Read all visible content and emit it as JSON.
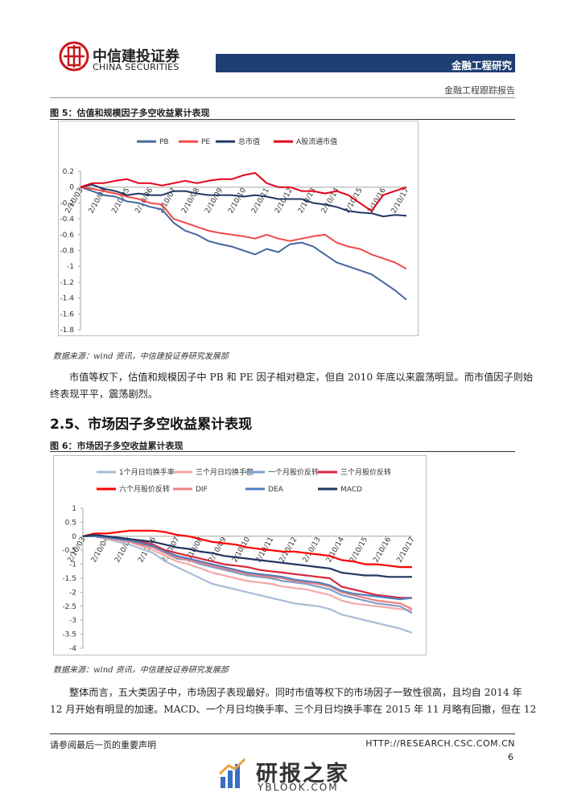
{
  "header": {
    "company_cn": "中信建投证券",
    "company_en": "CHINA SECURITIES",
    "department": "金融工程研究",
    "report_type": "金融工程跟踪报告"
  },
  "chart_data": [
    {
      "type": "line",
      "title": "图 5：估值和规模因子多空收益累计表现",
      "source": "数据来源：wind 资讯，中信建投证券研究发展部",
      "categories": [
        "2/10/03",
        null,
        "2/10/04",
        null,
        "2/10/05",
        null,
        "2/10/06",
        null,
        "2/10/07",
        null,
        "2/10/08",
        null,
        "2/10/09",
        null,
        "2/10/10",
        null,
        "2/10/11",
        null,
        "2/10/12",
        null,
        "2/10/13",
        null,
        "2/10/14",
        null,
        "2/10/15",
        null,
        "2/10/16",
        null,
        "2/10/17"
      ],
      "ylim": [
        -1.8,
        0.2
      ],
      "yticks": [
        0.2,
        0,
        -0.2,
        -0.4,
        -0.6,
        -0.8,
        -1,
        -1.2,
        -1.4,
        -1.6,
        -1.8
      ],
      "grid": false,
      "series": [
        {
          "name": "PB",
          "color": "#44679c",
          "values": [
            0,
            -0.05,
            -0.1,
            -0.12,
            -0.18,
            -0.2,
            -0.25,
            -0.28,
            -0.45,
            -0.55,
            -0.6,
            -0.68,
            -0.72,
            -0.75,
            -0.8,
            -0.85,
            -0.78,
            -0.82,
            -0.72,
            -0.7,
            -0.75,
            -0.85,
            -0.95,
            -1.0,
            -1.05,
            -1.1,
            -1.2,
            -1.3,
            -1.42
          ]
        },
        {
          "name": "PE",
          "color": "#f04848",
          "values": [
            0,
            -0.02,
            -0.05,
            -0.08,
            -0.12,
            -0.15,
            -0.2,
            -0.22,
            -0.4,
            -0.45,
            -0.5,
            -0.55,
            -0.58,
            -0.6,
            -0.62,
            -0.65,
            -0.6,
            -0.65,
            -0.68,
            -0.65,
            -0.62,
            -0.6,
            -0.7,
            -0.75,
            -0.78,
            -0.85,
            -0.9,
            -0.95,
            -1.03
          ]
        },
        {
          "name": "总市值",
          "color": "#1f3864",
          "values": [
            0,
            0.03,
            -0.02,
            -0.05,
            -0.1,
            -0.08,
            -0.1,
            -0.1,
            -0.05,
            -0.05,
            -0.08,
            -0.1,
            -0.1,
            -0.1,
            -0.12,
            -0.1,
            -0.12,
            -0.15,
            -0.15,
            -0.15,
            -0.2,
            -0.22,
            -0.25,
            -0.3,
            -0.32,
            -0.33,
            -0.37,
            -0.35,
            -0.36
          ]
        },
        {
          "name": "A股流通市值",
          "color": "#e3001b",
          "values": [
            0,
            0.05,
            0.05,
            0.08,
            0.1,
            0.05,
            0.05,
            0.02,
            0.05,
            0.08,
            0.05,
            0.08,
            0.1,
            0.1,
            0.15,
            0.18,
            0.05,
            0.0,
            0.0,
            -0.05,
            -0.05,
            -0.08,
            -0.05,
            -0.1,
            -0.2,
            -0.3,
            -0.1,
            -0.05,
            0.0
          ]
        }
      ]
    },
    {
      "type": "line",
      "title": "图 6：市场因子多空收益累计表现",
      "source": "数据来源：wind 资讯，中信建投证券研究发展部",
      "categories": [
        "2/10/03",
        null,
        "2/10/04",
        null,
        "2/10/05",
        null,
        "2/10/06",
        null,
        "2/10/07",
        null,
        "2/10/08",
        null,
        "2/10/09",
        null,
        "2/10/10",
        null,
        "2/10/11",
        null,
        "2/10/12",
        null,
        "2/10/13",
        null,
        "2/10/14",
        null,
        "2/10/15",
        null,
        "2/10/16",
        null,
        "2/10/17"
      ],
      "ylim": [
        -4,
        1
      ],
      "yticks": [
        1,
        0.5,
        0,
        -0.5,
        -1,
        -1.5,
        -2,
        -2.5,
        -3,
        -3.5,
        -4
      ],
      "grid": false,
      "series": [
        {
          "name": "1个月日均换手率",
          "color": "#a9bcd6",
          "values": [
            0,
            0,
            -0.1,
            -0.2,
            -0.3,
            -0.45,
            -0.6,
            -0.9,
            -1.1,
            -1.3,
            -1.5,
            -1.7,
            -1.8,
            -1.9,
            -2.0,
            -2.1,
            -2.2,
            -2.3,
            -2.4,
            -2.45,
            -2.5,
            -2.6,
            -2.8,
            -2.9,
            -3.0,
            -3.1,
            -3.2,
            -3.3,
            -3.45
          ]
        },
        {
          "name": "三个月日均换手额",
          "color": "#f4a9a8",
          "values": [
            0,
            0,
            -0.1,
            -0.15,
            -0.2,
            -0.35,
            -0.5,
            -0.7,
            -0.9,
            -1.0,
            -1.15,
            -1.3,
            -1.4,
            -1.5,
            -1.6,
            -1.65,
            -1.7,
            -1.8,
            -1.85,
            -1.9,
            -2.0,
            -2.1,
            -2.3,
            -2.4,
            -2.45,
            -2.5,
            -2.55,
            -2.6,
            -2.65
          ]
        },
        {
          "name": "一个月股价反转",
          "color": "#7f9fc9",
          "values": [
            0,
            0,
            -0.05,
            -0.1,
            -0.15,
            -0.3,
            -0.4,
            -0.6,
            -0.8,
            -0.85,
            -1.0,
            -1.1,
            -1.2,
            -1.3,
            -1.4,
            -1.45,
            -1.5,
            -1.6,
            -1.65,
            -1.7,
            -1.8,
            -1.9,
            -2.1,
            -2.2,
            -2.3,
            -2.4,
            -2.45,
            -2.5,
            -2.75
          ]
        },
        {
          "name": "三个月股价反转",
          "color": "#d7263d",
          "values": [
            0,
            0.05,
            0,
            -0.05,
            -0.1,
            -0.2,
            -0.3,
            -0.5,
            -0.6,
            -0.7,
            -0.8,
            -0.9,
            -1.0,
            -1.05,
            -1.1,
            -1.2,
            -1.25,
            -1.3,
            -1.35,
            -1.4,
            -1.45,
            -1.5,
            -1.8,
            -1.9,
            -2.0,
            -2.1,
            -2.15,
            -2.2,
            -2.2
          ]
        },
        {
          "name": "六个月股价反转",
          "color": "#ff0000",
          "values": [
            0,
            0.1,
            0.1,
            0.15,
            0.2,
            0.2,
            0.2,
            0.15,
            0.05,
            0,
            -0.1,
            -0.2,
            -0.25,
            -0.3,
            -0.4,
            -0.45,
            -0.5,
            -0.55,
            -0.55,
            -0.6,
            -0.65,
            -0.7,
            -0.85,
            -0.9,
            -1.0,
            -1.0,
            -1.05,
            -1.1,
            -1.1
          ]
        },
        {
          "name": "DIF",
          "color": "#f08080",
          "values": [
            0,
            0,
            -0.05,
            -0.1,
            -0.2,
            -0.3,
            -0.4,
            -0.6,
            -0.75,
            -0.85,
            -0.95,
            -1.05,
            -1.15,
            -1.25,
            -1.35,
            -1.4,
            -1.45,
            -1.5,
            -1.6,
            -1.65,
            -1.7,
            -1.8,
            -2.0,
            -2.1,
            -2.2,
            -2.3,
            -2.35,
            -2.4,
            -2.6
          ]
        },
        {
          "name": "DEA",
          "color": "#4f81bd",
          "values": [
            0,
            0,
            -0.05,
            -0.1,
            -0.15,
            -0.25,
            -0.35,
            -0.55,
            -0.7,
            -0.8,
            -0.9,
            -1.0,
            -1.1,
            -1.2,
            -1.3,
            -1.35,
            -1.4,
            -1.45,
            -1.55,
            -1.6,
            -1.65,
            -1.75,
            -1.95,
            -2.05,
            -2.1,
            -2.15,
            -2.2,
            -2.25,
            -2.2
          ]
        },
        {
          "name": "MACD",
          "color": "#1f3864",
          "values": [
            0,
            0.05,
            0,
            -0.05,
            -0.1,
            -0.15,
            -0.2,
            -0.3,
            -0.4,
            -0.45,
            -0.55,
            -0.6,
            -0.7,
            -0.75,
            -0.8,
            -0.85,
            -0.9,
            -0.95,
            -1.0,
            -1.05,
            -1.1,
            -1.15,
            -1.3,
            -1.35,
            -1.4,
            -1.4,
            -1.45,
            -1.45,
            -1.45
          ]
        }
      ]
    }
  ],
  "body": {
    "paragraph_1": [
      "市值等权下，估值和规模因子中 PB 和 PE 因子相对稳定，但自 2010 年底以来震荡明显。而市值因子则始",
      "终表现平平，震荡剧烈。"
    ],
    "section_heading": "2.5、市场因子多空收益累计表现",
    "paragraph_2": [
      "整体而言，五大类因子中，市场因子表现最好。同时市值等权下的市场因子一致性很高，且均自 2014 年",
      "12 月开始有明显的加速。MACD、一个月日均换手率、三个月日均换手率在 2015 年 11 月略有回撤，但在 12"
    ]
  },
  "footer": {
    "disclaimer": "请参阅最后一页的重要声明",
    "url": "HTTP://RESEARCH.CSC.COM.CN",
    "page": "6"
  },
  "watermark": {
    "name": "研报之家",
    "site": "YBLOOK.COM"
  }
}
